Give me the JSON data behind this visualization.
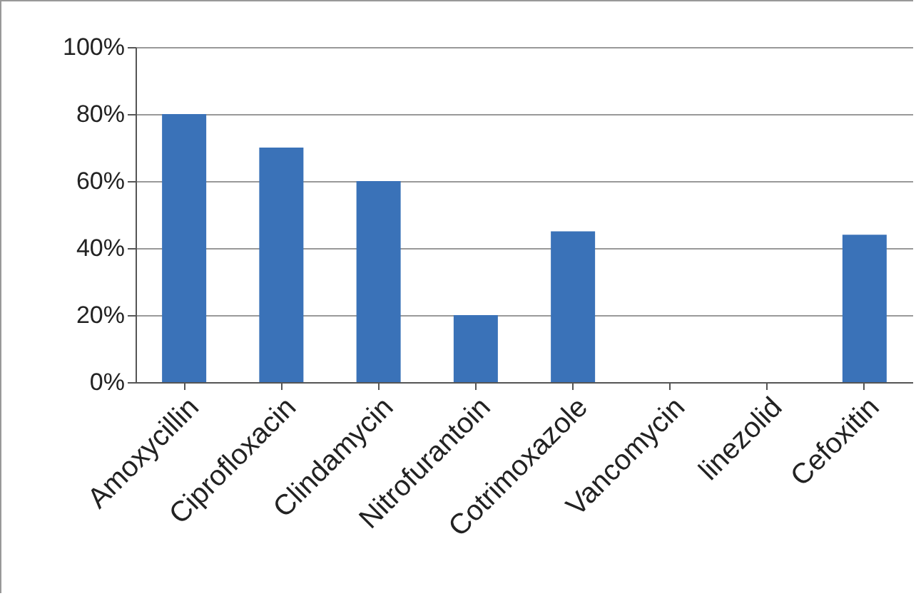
{
  "chart_data": {
    "type": "bar",
    "categories": [
      "Amoxycillin",
      "Ciprofloxacin",
      "Clindamycin",
      "Nitrofurantoin",
      "Cotrimoxazole",
      "Vancomycin",
      "linezolid",
      "Cefoxitin"
    ],
    "values": [
      80,
      70,
      60,
      20,
      45,
      0,
      0,
      44
    ],
    "color": "#3a72b8",
    "ylim": [
      0,
      100
    ],
    "yticks": [
      {
        "value": 0,
        "label": "0%"
      },
      {
        "value": 20,
        "label": "20%"
      },
      {
        "value": 40,
        "label": "40%"
      },
      {
        "value": 60,
        "label": "60%"
      },
      {
        "value": 80,
        "label": "80%"
      },
      {
        "value": 100,
        "label": "100%"
      }
    ],
    "grid": "y"
  }
}
